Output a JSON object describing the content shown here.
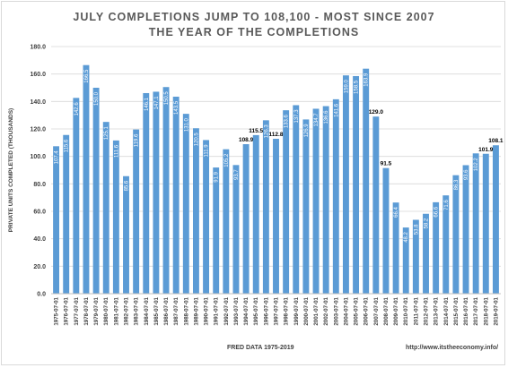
{
  "title_line1": "JULY COMPLETIONS  JUMP TO 108,100 - MOST SINCE 2007",
  "title_line2": "THE YEAR OF THE COMPLETIONS",
  "source": "FRED DATA 1975-2019",
  "url": "http://www.itstheeconomy.info/",
  "colors": {
    "bar": "#5b9bd5",
    "grid": "#d9d9d9",
    "text": "#595959"
  },
  "chart_data": {
    "type": "bar",
    "ylabel": "PRIVATE UNITS COMPLETED (THOUSANDS)",
    "ylim": [
      0,
      180
    ],
    "yticks": [
      "0.0",
      "20.0",
      "40.0",
      "60.0",
      "80.0",
      "100.0",
      "120.0",
      "140.0",
      "160.0",
      "180.0"
    ],
    "grid": true,
    "categories": [
      "1975-07-01",
      "1976-07-01",
      "1977-07-01",
      "1978-07-01",
      "1979-07-01",
      "1980-07-01",
      "1981-07-01",
      "1982-07-01",
      "1983-07-01",
      "1984-07-01",
      "1985-07-01",
      "1986-07-01",
      "1987-07-01",
      "1988-07-01",
      "1989-07-01",
      "1990-07-01",
      "1991-07-01",
      "1992-07-01",
      "1993-07-01",
      "1994-07-01",
      "1995-07-01",
      "1996-07-01",
      "1997-07-01",
      "1998-07-01",
      "1999-07-01",
      "2000-07-01",
      "2001-07-01",
      "2002-07-01",
      "2003-07-01",
      "2004-07-01",
      "2005-07-01",
      "2006-07-01",
      "2007-07-01",
      "2008-07-01",
      "2009-07-01",
      "2010-07-01",
      "2011-07-01",
      "2012-07-01",
      "2013-07-01",
      "2014-07-01",
      "2015-07-01",
      "2016-07-01",
      "2017-07-01",
      "2018-07-01",
      "2019-07-01"
    ],
    "values": [
      107.4,
      115.6,
      142.6,
      166.5,
      150.0,
      125.1,
      111.6,
      85.6,
      119.6,
      146.1,
      147.1,
      150.5,
      143.5,
      131.0,
      120.5,
      111.9,
      91.9,
      105.2,
      93.7,
      108.9,
      115.5,
      126.3,
      112.8,
      133.6,
      137.3,
      126.9,
      134.7,
      136.6,
      141.6,
      159.0,
      158.5,
      163.9,
      129.0,
      91.5,
      66.4,
      48.2,
      53.8,
      58.2,
      66.6,
      71.6,
      86.3,
      93.6,
      102.2,
      101.9,
      108.1
    ],
    "data_labels": [
      "107.4",
      "115.6",
      "142.6",
      "166.5",
      "150.0",
      "125.1",
      "111.6",
      "85.6",
      "119.6",
      "146.1",
      "147.1",
      "150.5",
      "143.5",
      "131.0",
      "120.5",
      "111.9",
      "91.9",
      "105.2",
      "93.7",
      "108.9",
      "115.5",
      "126.3",
      "112.8",
      "133.6",
      "137.3",
      "126.9",
      "134.7",
      "136.6",
      "141.6",
      "159.0",
      "158.5",
      "163.9",
      "129.0",
      "91.5",
      "66.4",
      "48.2",
      "53.8",
      "58.2",
      "66.6",
      "71.6",
      "86.3",
      "93.6",
      "102.2",
      "101.9",
      "108.1"
    ],
    "outside_labels": [
      19,
      20,
      22,
      32,
      33,
      43,
      44
    ]
  }
}
